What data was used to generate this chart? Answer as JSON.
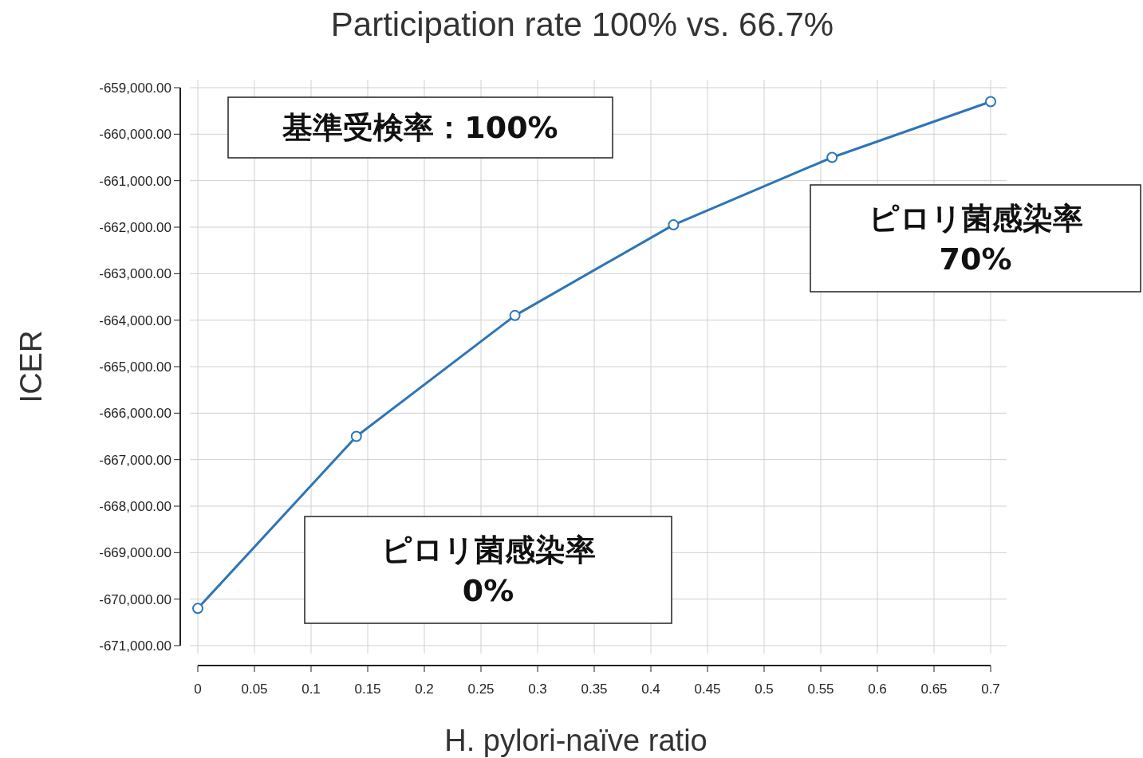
{
  "chart_data": {
    "type": "line",
    "title": "Participation rate 100% vs. 66.7%",
    "xlabel": "H. pylori-naïve ratio",
    "ylabel": "ICER",
    "x": [
      0,
      0.14,
      0.28,
      0.42,
      0.56,
      0.7
    ],
    "series": [
      {
        "color": "#2e75b6",
        "values": [
          -670200,
          -666500,
          -663900,
          -661950,
          -660500,
          -659300
        ]
      }
    ],
    "xlim": [
      0,
      0.7
    ],
    "ylim": [
      -671000,
      -659000
    ],
    "xticks": [
      0,
      0.05,
      0.1,
      0.15,
      0.2,
      0.25,
      0.3,
      0.35,
      0.4,
      0.45,
      0.5,
      0.55,
      0.6,
      0.65,
      0.7
    ],
    "yticks": [
      {
        "value": -659000,
        "label": "-659,000.00"
      },
      {
        "value": -660000,
        "label": "-660,000.00"
      },
      {
        "value": -661000,
        "label": "-661,000.00"
      },
      {
        "value": -662000,
        "label": "-662,000.00"
      },
      {
        "value": -663000,
        "label": "-663,000.00"
      },
      {
        "value": -664000,
        "label": "-664,000.00"
      },
      {
        "value": -665000,
        "label": "-665,000.00"
      },
      {
        "value": -666000,
        "label": "-666,000.00"
      },
      {
        "value": -667000,
        "label": "-667,000.00"
      },
      {
        "value": -668000,
        "label": "-668,000.00"
      },
      {
        "value": -669000,
        "label": "-669,000.00"
      },
      {
        "value": -670000,
        "label": "-670,000.00"
      },
      {
        "value": -671000,
        "label": "-671,000.00"
      }
    ],
    "grid": true,
    "marker": "circle",
    "line_style": "solid",
    "annotations": [
      "基準受検率：100%",
      "ピロリ菌感染率\n70%",
      "ピロリ菌感染率\n0%"
    ]
  }
}
